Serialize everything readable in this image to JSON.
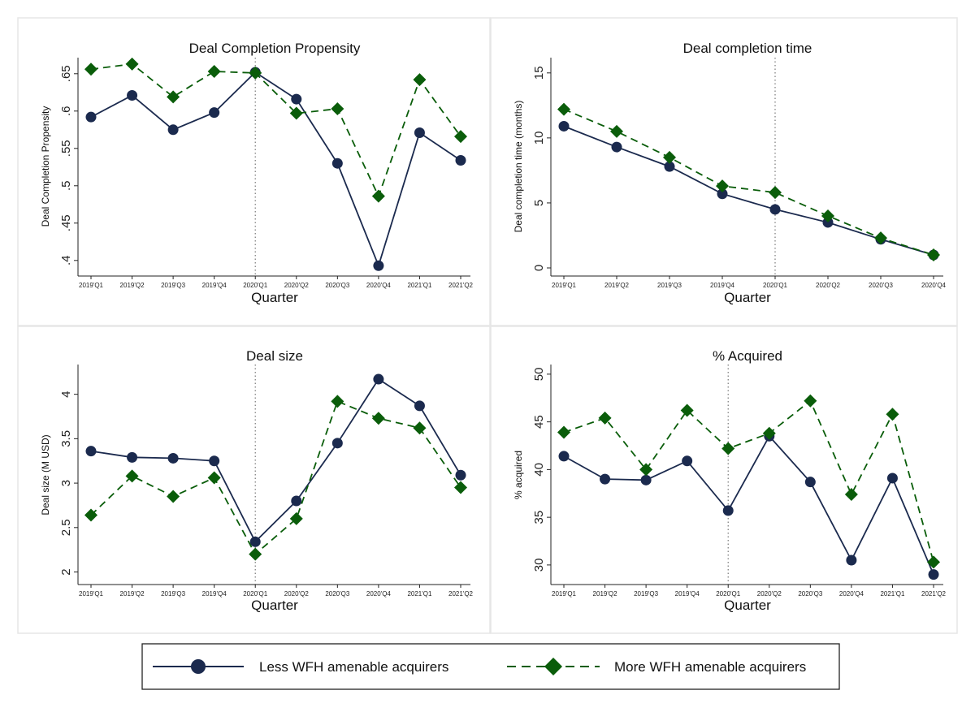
{
  "colors": {
    "less": "#1b2a4e",
    "more": "#0a5d0a",
    "panel_border": "#e6e6e6",
    "axis": "#222222",
    "ref_line": "#777777"
  },
  "legend": {
    "items": [
      {
        "label": "Less WFH amenable acquirers",
        "style": "solid",
        "marker": "circle",
        "color": "#1b2a4e"
      },
      {
        "label": "More WFH amenable acquirers",
        "style": "dashed",
        "marker": "diamond",
        "color": "#0a5d0a"
      }
    ]
  },
  "chart_data": [
    {
      "type": "line",
      "title": "Deal Completion Propensity",
      "xlabel": "Quarter",
      "ylabel": "Deal Completion Propensity",
      "categories": [
        "2019'Q1",
        "2019'Q2",
        "2019'Q3",
        "2019'Q4",
        "2020'Q1",
        "2020'Q2",
        "2020'Q3",
        "2020'Q4",
        "2021'Q1",
        "2021'Q2"
      ],
      "ylim": [
        0.39,
        0.665
      ],
      "yticks": [
        0.4,
        0.45,
        0.5,
        0.55,
        0.6,
        0.65
      ],
      "ytick_labels": [
        ".4",
        ".45",
        ".5",
        ".55",
        ".6",
        ".65"
      ],
      "vline_category": "2020'Q1",
      "series": [
        {
          "name": "Less WFH amenable acquirers",
          "values": [
            0.592,
            0.621,
            0.575,
            0.598,
            0.652,
            0.616,
            0.53,
            0.393,
            0.571,
            0.534
          ]
        },
        {
          "name": "More WFH amenable acquirers",
          "values": [
            0.656,
            0.663,
            0.619,
            0.653,
            0.651,
            0.597,
            0.603,
            0.486,
            0.642,
            0.566
          ]
        }
      ]
    },
    {
      "type": "line",
      "title": "Deal completion time",
      "xlabel": "Quarter",
      "ylabel": "Deal completion time (months)",
      "categories": [
        "2019'Q1",
        "2019'Q2",
        "2019'Q3",
        "2019'Q4",
        "2020'Q1",
        "2020'Q2",
        "2020'Q3",
        "2020'Q4"
      ],
      "ylim": [
        0,
        15.8
      ],
      "yticks": [
        0,
        5,
        10,
        15
      ],
      "ytick_labels": [
        "0",
        "5",
        "10",
        "15"
      ],
      "vline_category": "2020'Q1",
      "series": [
        {
          "name": "Less WFH amenable acquirers",
          "values": [
            10.9,
            9.3,
            7.8,
            5.7,
            4.5,
            3.5,
            2.2,
            1.0
          ]
        },
        {
          "name": "More WFH amenable acquirers",
          "values": [
            12.2,
            10.5,
            8.5,
            6.3,
            5.8,
            4.0,
            2.3,
            1.0
          ]
        }
      ]
    },
    {
      "type": "line",
      "title": "Deal size",
      "xlabel": "Quarter",
      "ylabel": "Deal size (M USD)",
      "categories": [
        "2019'Q1",
        "2019'Q2",
        "2019'Q3",
        "2019'Q4",
        "2020'Q1",
        "2020'Q2",
        "2020'Q3",
        "2020'Q4",
        "2021'Q1",
        "2021'Q2"
      ],
      "ylim": [
        1.95,
        4.28
      ],
      "yticks": [
        2,
        2.5,
        3,
        3.5,
        4
      ],
      "ytick_labels": [
        "2",
        "2.5",
        "3",
        "3.5",
        "4"
      ],
      "vline_category": "2020'Q1",
      "series": [
        {
          "name": "Less WFH amenable acquirers",
          "values": [
            3.36,
            3.29,
            3.28,
            3.25,
            2.34,
            2.8,
            3.45,
            4.17,
            3.87,
            3.09
          ]
        },
        {
          "name": "More WFH amenable acquirers",
          "values": [
            2.64,
            3.08,
            2.85,
            3.06,
            2.2,
            2.6,
            3.92,
            3.73,
            3.62,
            2.95
          ]
        }
      ]
    },
    {
      "type": "line",
      "title": "% Acquired",
      "xlabel": "Quarter",
      "ylabel": "% acquired",
      "categories": [
        "2019'Q1",
        "2019'Q2",
        "2019'Q3",
        "2019'Q4",
        "2020'Q1",
        "2020'Q2",
        "2020'Q3",
        "2020'Q4",
        "2021'Q1",
        "2021'Q2"
      ],
      "ylim": [
        28.8,
        50.5
      ],
      "yticks": [
        30,
        35,
        40,
        45,
        50
      ],
      "ytick_labels": [
        "30",
        "35",
        "40",
        "45",
        "50"
      ],
      "vline_category": "2020'Q1",
      "series": [
        {
          "name": "Less WFH amenable acquirers",
          "values": [
            41.4,
            39.0,
            38.9,
            40.9,
            35.7,
            43.5,
            38.7,
            30.5,
            39.1,
            29.0
          ]
        },
        {
          "name": "More WFH amenable acquirers",
          "values": [
            43.9,
            45.4,
            40.0,
            46.2,
            42.2,
            43.8,
            47.2,
            37.4,
            45.8,
            30.3
          ]
        }
      ]
    }
  ]
}
